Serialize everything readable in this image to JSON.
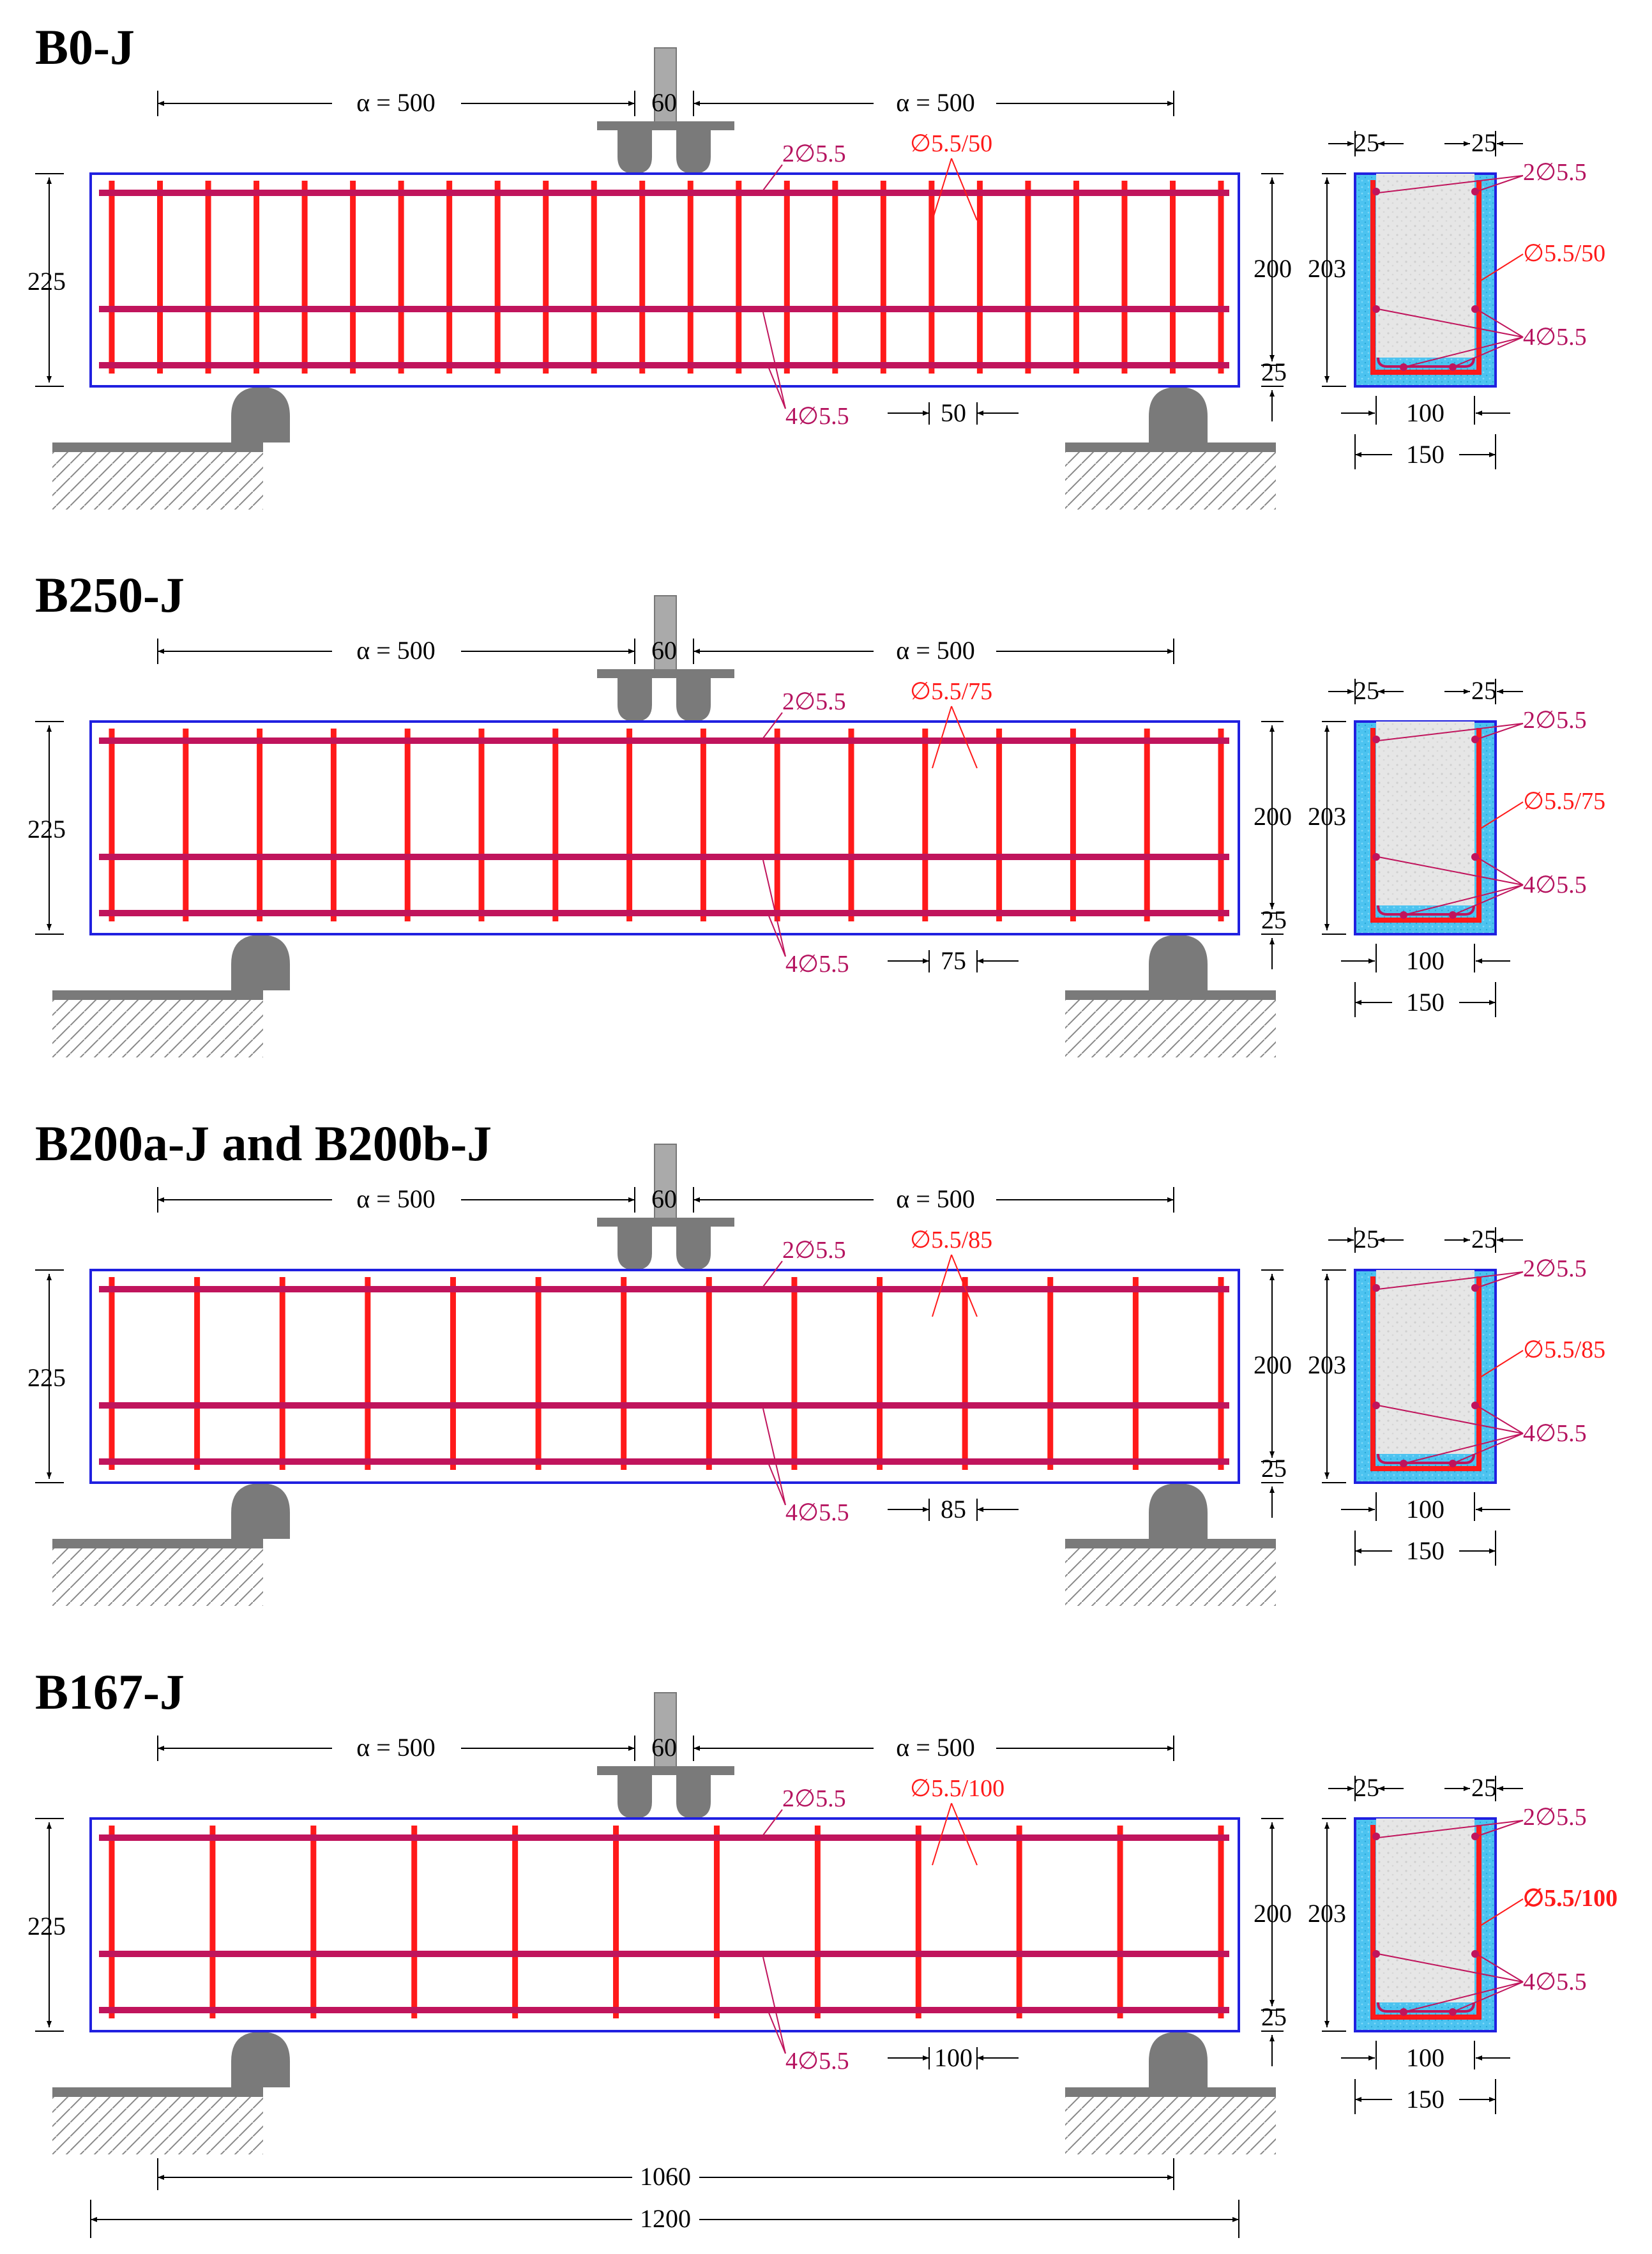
{
  "labels": {
    "load_spacing": "60",
    "alpha_left": "α = 500",
    "alpha_right": "α = 500",
    "height_225": "225",
    "height_200": "200",
    "cover_25": "25",
    "top_bars": "2∅5.5",
    "bottom_bars": "4∅5.5",
    "cs_top_bars": "2∅5.5",
    "cs_bottom_bars": "4∅5.5",
    "cs_height": "203",
    "cs_cover_left": "25",
    "cs_cover_right": "25",
    "cs_inner_width": "100",
    "cs_width": "150",
    "clear_span": "1060",
    "total_length": "1200"
  },
  "beams": [
    {
      "title": "B0-J",
      "stirrup_label": "∅5.5/50",
      "spacing_label": "50",
      "cs_stirrup_label": "∅5.5/50",
      "stirrups": 24,
      "cs_bold": false
    },
    {
      "title": "B250-J",
      "stirrup_label": "∅5.5/75",
      "spacing_label": "75",
      "cs_stirrup_label": "∅5.5/75",
      "stirrups": 16,
      "cs_bold": false
    },
    {
      "title": "B200a-J and B200b-J",
      "stirrup_label": "∅5.5/85",
      "spacing_label": "85",
      "cs_stirrup_label": "∅5.5/85",
      "stirrups": 14,
      "cs_bold": false
    },
    {
      "title": "B167-J",
      "stirrup_label": "∅5.5/100",
      "spacing_label": "100",
      "cs_stirrup_label": "∅5.5/100",
      "stirrups": 12,
      "cs_bold": true
    }
  ],
  "colors": {
    "beam_outline": "#2020e0",
    "stirrup": "#ff1a1a",
    "long_bar": "#c0145c",
    "support": "#7a7a7a",
    "concrete_fill": "#e3e3e3",
    "cover_fill": "#33bbee",
    "hatch": "#888888"
  }
}
